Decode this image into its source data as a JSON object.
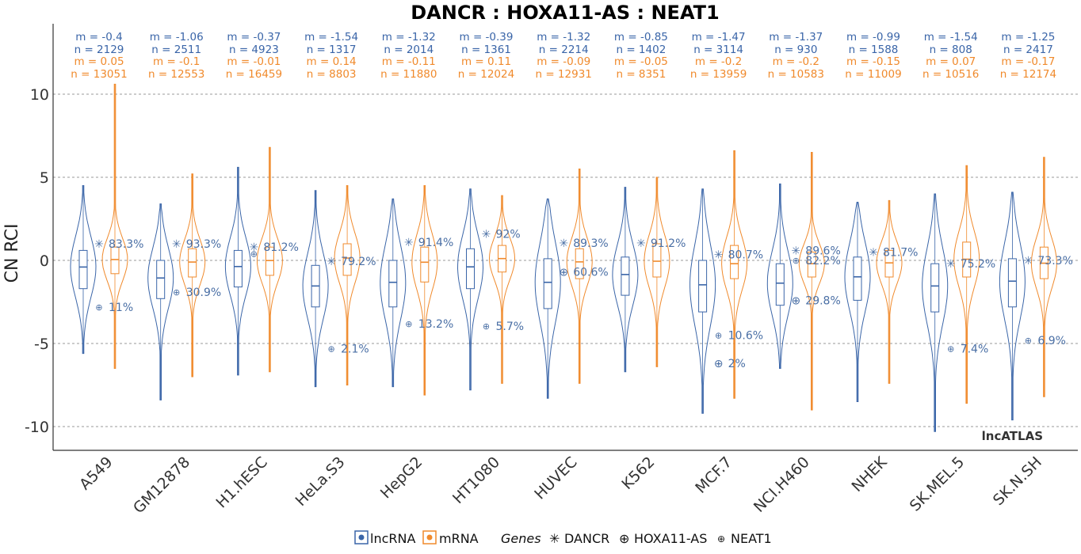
{
  "chart_data": {
    "type": "violin",
    "title": "DANCR : HOXA11-AS : NEAT1",
    "ylabel": "CN RCI",
    "ylim": [
      -11,
      14
    ],
    "yticks": [
      10,
      5,
      0,
      -5,
      -10
    ],
    "ytick_labels": [
      "10",
      "5",
      "0",
      "-5",
      "-10"
    ],
    "grid": "horizontal dashed",
    "watermark": "lncATLAS",
    "colors": {
      "lncRNA": "#3a65a8",
      "mRNA": "#f08a2c",
      "marker": "#4a6fa5"
    },
    "legend": {
      "series": [
        "lncRNA",
        "mRNA"
      ],
      "genes_title": "Genes",
      "genes": [
        {
          "symbol": "✳",
          "name": "DANCR"
        },
        {
          "symbol": "⊕",
          "name": "HOXA11-AS"
        },
        {
          "symbol": "⊕",
          "name": "NEAT1"
        }
      ]
    },
    "categories": [
      "A549",
      "GM12878",
      "H1.hESC",
      "HeLa.S3",
      "HepG2",
      "HT1080",
      "HUVEC",
      "K562",
      "MCF.7",
      "NCI.H460",
      "NHEK",
      "SK.MEL.5",
      "SK.N.SH"
    ],
    "lncRNA_stats": [
      {
        "m_label": "m = -0.4",
        "n_label": "n = 2129",
        "median": -0.4,
        "q1": -1.7,
        "q3": 0.6,
        "min": -5.6,
        "max": 4.5
      },
      {
        "m_label": "m = -1.06",
        "n_label": "n = 2511",
        "median": -1.06,
        "q1": -2.3,
        "q3": 0.0,
        "min": -8.4,
        "max": 3.4
      },
      {
        "m_label": "m = -0.37",
        "n_label": "n = 4923",
        "median": -0.37,
        "q1": -1.6,
        "q3": 0.6,
        "min": -6.9,
        "max": 5.6
      },
      {
        "m_label": "m = -1.54",
        "n_label": "n = 1317",
        "median": -1.54,
        "q1": -2.8,
        "q3": -0.3,
        "min": -7.6,
        "max": 4.2
      },
      {
        "m_label": "m = -1.32",
        "n_label": "n = 2014",
        "median": -1.32,
        "q1": -2.8,
        "q3": 0.0,
        "min": -7.6,
        "max": 3.7
      },
      {
        "m_label": "m = -0.39",
        "n_label": "n = 1361",
        "median": -0.39,
        "q1": -1.7,
        "q3": 0.7,
        "min": -7.8,
        "max": 4.3
      },
      {
        "m_label": "m = -1.32",
        "n_label": "n = 2214",
        "median": -1.32,
        "q1": -2.9,
        "q3": 0.1,
        "min": -8.3,
        "max": 3.7
      },
      {
        "m_label": "m = -0.85",
        "n_label": "n = 1402",
        "median": -0.85,
        "q1": -2.1,
        "q3": 0.2,
        "min": -6.7,
        "max": 4.4
      },
      {
        "m_label": "m = -1.47",
        "n_label": "n = 3114",
        "median": -1.47,
        "q1": -3.1,
        "q3": 0.0,
        "min": -9.2,
        "max": 4.3
      },
      {
        "m_label": "m = -1.37",
        "n_label": "n = 930",
        "median": -1.37,
        "q1": -2.7,
        "q3": -0.2,
        "min": -6.5,
        "max": 4.6
      },
      {
        "m_label": "m = -0.99",
        "n_label": "n = 1588",
        "median": -0.99,
        "q1": -2.4,
        "q3": 0.2,
        "min": -8.5,
        "max": 3.5
      },
      {
        "m_label": "m = -1.54",
        "n_label": "n = 808",
        "median": -1.54,
        "q1": -3.1,
        "q3": -0.2,
        "min": -10.3,
        "max": 4.0
      },
      {
        "m_label": "m = -1.25",
        "n_label": "n = 2417",
        "median": -1.25,
        "q1": -2.8,
        "q3": 0.1,
        "min": -9.6,
        "max": 4.1
      }
    ],
    "mRNA_stats": [
      {
        "m_label": "m = 0.05",
        "n_label": "n = 13051",
        "median": 0.05,
        "q1": -0.8,
        "q3": 0.8,
        "min": -6.5,
        "max": 10.6
      },
      {
        "m_label": "m = -0.1",
        "n_label": "n = 12553",
        "median": -0.1,
        "q1": -1.0,
        "q3": 0.7,
        "min": -7.0,
        "max": 5.2
      },
      {
        "m_label": "m = -0.01",
        "n_label": "n = 16459",
        "median": -0.01,
        "q1": -0.9,
        "q3": 0.8,
        "min": -6.7,
        "max": 6.8
      },
      {
        "m_label": "m = 0.14",
        "n_label": "n = 8803",
        "median": 0.14,
        "q1": -0.9,
        "q3": 1.0,
        "min": -7.5,
        "max": 4.5
      },
      {
        "m_label": "m = -0.11",
        "n_label": "n = 11880",
        "median": -0.11,
        "q1": -1.3,
        "q3": 0.8,
        "min": -8.1,
        "max": 4.5
      },
      {
        "m_label": "m = 0.11",
        "n_label": "n = 12024",
        "median": 0.11,
        "q1": -0.7,
        "q3": 0.9,
        "min": -7.4,
        "max": 3.9
      },
      {
        "m_label": "m = -0.09",
        "n_label": "n = 12931",
        "median": -0.09,
        "q1": -1.1,
        "q3": 0.7,
        "min": -7.4,
        "max": 5.5
      },
      {
        "m_label": "m = -0.05",
        "n_label": "n = 8351",
        "median": -0.05,
        "q1": -1.0,
        "q3": 1.0,
        "min": -6.4,
        "max": 5.0
      },
      {
        "m_label": "m = -0.2",
        "n_label": "n = 13959",
        "median": -0.2,
        "q1": -1.1,
        "q3": 0.9,
        "min": -8.3,
        "max": 6.6
      },
      {
        "m_label": "m = -0.2",
        "n_label": "n = 10583",
        "median": -0.2,
        "q1": -1.0,
        "q3": 0.5,
        "min": -9.0,
        "max": 6.5
      },
      {
        "m_label": "m = -0.15",
        "n_label": "n = 11009",
        "median": -0.15,
        "q1": -1.0,
        "q3": 0.6,
        "min": -7.4,
        "max": 3.6
      },
      {
        "m_label": "m = 0.07",
        "n_label": "n = 10516",
        "median": 0.07,
        "q1": -1.0,
        "q3": 1.1,
        "min": -8.6,
        "max": 5.7
      },
      {
        "m_label": "m = -0.17",
        "n_label": "n = 12174",
        "median": -0.17,
        "q1": -1.1,
        "q3": 0.8,
        "min": -8.2,
        "max": 6.2
      }
    ],
    "gene_points": {
      "DANCR": [
        {
          "value": 1.0,
          "label": "83.3%"
        },
        {
          "value": 1.0,
          "label": "93.3%"
        },
        {
          "value": 0.8,
          "label": "81.2%"
        },
        {
          "value": -0.05,
          "label": "79.2%"
        },
        {
          "value": 1.1,
          "label": "91.4%"
        },
        {
          "value": 1.6,
          "label": "92%"
        },
        {
          "value": 1.05,
          "label": "89.3%"
        },
        {
          "value": 1.05,
          "label": "91.2%"
        },
        {
          "value": 0.35,
          "label": "80.7%"
        },
        {
          "value": 0.6,
          "label": "89.6%"
        },
        {
          "value": 0.5,
          "label": "81.7%"
        },
        {
          "value": -0.2,
          "label": "75.2%"
        },
        {
          "value": 0.0,
          "label": "73.3%"
        }
      ],
      "HOXA11-AS": [
        null,
        null,
        null,
        null,
        null,
        null,
        {
          "value": -0.7,
          "label": "60.6%"
        },
        null,
        {
          "value": -6.2,
          "label": "2%"
        },
        {
          "value": -2.4,
          "label": "29.8%"
        },
        null,
        null,
        null
      ],
      "NEAT1": [
        {
          "value": -2.8,
          "label": "11%"
        },
        {
          "value": -1.9,
          "label": "30.9%"
        },
        {
          "value": 0.4,
          "label": ""
        },
        {
          "value": -5.3,
          "label": "2.1%"
        },
        {
          "value": -3.8,
          "label": "13.2%"
        },
        {
          "value": -3.95,
          "label": "5.7%"
        },
        null,
        null,
        {
          "value": -4.5,
          "label": "10.6%"
        },
        {
          "value": 0.0,
          "label": "82.2%"
        },
        null,
        {
          "value": -5.3,
          "label": "7.4%"
        },
        {
          "value": -4.8,
          "label": "6.9%"
        }
      ]
    }
  }
}
